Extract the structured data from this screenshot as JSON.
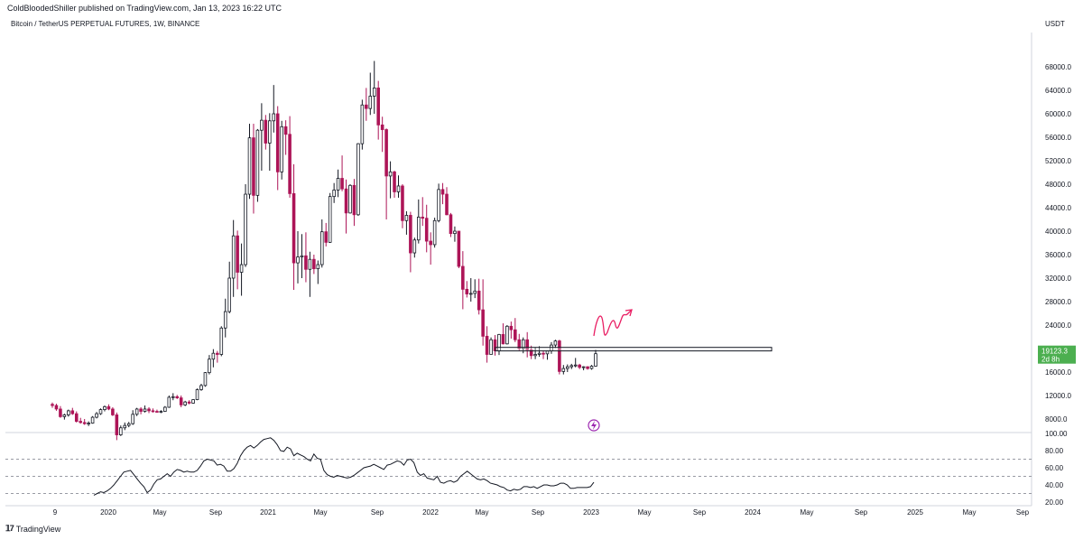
{
  "header": {
    "published": "ColdBloodedShiller published on TradingView.com, Jan 13, 2023 16:22 UTC",
    "symbol": "Bitcoin / TetherUS PERPETUAL FUTURES, 1W, BINANCE",
    "currency": "USDT"
  },
  "footer": {
    "brand": "TradingView",
    "logo": "tradingview-logo-icon"
  },
  "price_badge": {
    "price": "19123.3",
    "countdown": "2d 8h",
    "color": "#4caf50"
  },
  "annotation_icon": "lightning-icon",
  "colors": {
    "up": "#131722",
    "down": "#ad1457",
    "drawing": "#e91e63",
    "rsi": "#131722"
  },
  "chart_data": [
    {
      "type": "candlestick",
      "title": "",
      "ylabel": "USDT",
      "ylim": [
        6000,
        70000
      ],
      "y_ticks": [
        "68000.0",
        "64000.0",
        "60000.0",
        "56000.0",
        "52000.0",
        "48000.0",
        "44000.0",
        "40000.0",
        "36000.0",
        "32000.0",
        "28000.0",
        "24000.0",
        "20000.0",
        "16000.0",
        "12000.0",
        "8000.0"
      ],
      "x_ticks": [
        "9",
        "2020",
        "May",
        "Sep",
        "2021",
        "May",
        "Sep",
        "2022",
        "May",
        "Sep",
        "2023",
        "May",
        "Sep",
        "2024",
        "May",
        "Sep",
        "2025",
        "May",
        "Sep"
      ],
      "series": [
        {
          "values": [
            [
              10500,
              10800,
              9900,
              10300
            ],
            [
              10300,
              10600,
              9400,
              9700
            ],
            [
              9700,
              10200,
              8200,
              8400
            ],
            [
              8400,
              8900,
              7900,
              8700
            ],
            [
              8700,
              9600,
              8400,
              9400
            ],
            [
              9400,
              9900,
              8700,
              8900
            ],
            [
              8900,
              9300,
              7400,
              7600
            ],
            [
              7600,
              8200,
              7200,
              7400
            ],
            [
              7400,
              8000,
              7000,
              7200
            ],
            [
              7200,
              7600,
              6800,
              7300
            ],
            [
              7300,
              8500,
              7200,
              8300
            ],
            [
              8300,
              9200,
              8100,
              8900
            ],
            [
              8900,
              9800,
              8700,
              9600
            ],
            [
              9600,
              10300,
              9300,
              10100
            ],
            [
              10100,
              10500,
              9500,
              9700
            ],
            [
              9700,
              10000,
              8500,
              8700
            ],
            [
              8700,
              9100,
              4400,
              5300
            ],
            [
              5300,
              6900,
              5100,
              6500
            ],
            [
              6500,
              7400,
              6100,
              6900
            ],
            [
              6900,
              7500,
              6600,
              7200
            ],
            [
              7200,
              9500,
              7000,
              8800
            ],
            [
              8800,
              9900,
              8500,
              9700
            ],
            [
              9700,
              10000,
              8800,
              9300
            ],
            [
              9300,
              10300,
              9100,
              9700
            ],
            [
              9700,
              10000,
              9000,
              9400
            ],
            [
              9400,
              9800,
              9100,
              9300
            ],
            [
              9300,
              9600,
              9100,
              9200
            ],
            [
              9200,
              9500,
              9000,
              9300
            ],
            [
              9300,
              10200,
              9200,
              10000
            ],
            [
              10000,
              12000,
              9900,
              11700
            ],
            [
              11700,
              12400,
              11200,
              11800
            ],
            [
              11800,
              12100,
              11400,
              11600
            ],
            [
              11600,
              12000,
              10000,
              10400
            ],
            [
              10400,
              11100,
              10200,
              10900
            ],
            [
              10900,
              11200,
              10500,
              10700
            ],
            [
              10700,
              11400,
              10600,
              11300
            ],
            [
              11300,
              13200,
              11200,
              13000
            ],
            [
              13000,
              14000,
              12800,
              13700
            ],
            [
              13700,
              16000,
              13500,
              15900
            ],
            [
              15900,
              18900,
              15600,
              18200
            ],
            [
              18200,
              19900,
              16800,
              19200
            ],
            [
              19200,
              19600,
              17600,
              19000
            ],
            [
              19000,
              23800,
              18700,
              23500
            ],
            [
              23500,
              28500,
              21900,
              26300
            ],
            [
              26300,
              34800,
              26000,
              32000
            ],
            [
              32000,
              41900,
              28800,
              39200
            ],
            [
              39200,
              40100,
              30100,
              33000
            ],
            [
              33000,
              37900,
              29000,
              34300
            ],
            [
              34300,
              48000,
              33900,
              46300
            ],
            [
              46300,
              58300,
              45500,
              55900
            ],
            [
              55900,
              58300,
              43000,
              46100
            ],
            [
              46100,
              57400,
              45000,
              57200
            ],
            [
              57200,
              61800,
              50300,
              58900
            ],
            [
              58900,
              59800,
              53900,
              55000
            ],
            [
              55000,
              60100,
              50300,
              58800
            ],
            [
              58800,
              64900,
              56800,
              60000
            ],
            [
              60000,
              61300,
              47000,
              50100
            ],
            [
              50100,
              58800,
              48800,
              57800
            ],
            [
              57800,
              58900,
              53000,
              56500
            ],
            [
              56500,
              59600,
              45700,
              46400
            ],
            [
              46400,
              51400,
              30000,
              34600
            ],
            [
              34600,
              40000,
              31100,
              35600
            ],
            [
              35600,
              39500,
              32000,
              35800
            ],
            [
              35800,
              39800,
              31300,
              33500
            ],
            [
              33500,
              36500,
              28800,
              35200
            ],
            [
              35200,
              36000,
              32700,
              33600
            ],
            [
              33600,
              35000,
              31000,
              34300
            ],
            [
              34300,
              42000,
              33800,
              39900
            ],
            [
              39900,
              41400,
              37400,
              38100
            ],
            [
              38100,
              46500,
              38000,
              45900
            ],
            [
              45900,
              48200,
              44800,
              47000
            ],
            [
              47000,
              50500,
              45800,
              49000
            ],
            [
              49000,
              52900,
              46800,
              47200
            ],
            [
              47200,
              48800,
              39600,
              43100
            ],
            [
              43100,
              48000,
              43000,
              47800
            ],
            [
              47800,
              48900,
              40900,
              42800
            ],
            [
              42800,
              55000,
              42600,
              54900
            ],
            [
              54900,
              62400,
              53900,
              61500
            ],
            [
              61500,
              64400,
              58800,
              60900
            ],
            [
              60900,
              67000,
              59800,
              63000
            ],
            [
              63000,
              69000,
              60000,
              64400
            ],
            [
              64400,
              65600,
              55600,
              58100
            ],
            [
              58100,
              59500,
              53500,
              57300
            ],
            [
              57300,
              57500,
              42000,
              49400
            ],
            [
              49400,
              51900,
              45600,
              50100
            ],
            [
              50100,
              50300,
              45700,
              46700
            ],
            [
              46700,
              49500,
              45700,
              47700
            ],
            [
              47700,
              48000,
              40500,
              41800
            ],
            [
              41800,
              43400,
              39400,
              42700
            ],
            [
              42700,
              43300,
              33000,
              36300
            ],
            [
              36300,
              38900,
              35500,
              38500
            ],
            [
              38500,
              45400,
              37900,
              42400
            ],
            [
              42400,
              45800,
              40900,
              42200
            ],
            [
              42200,
              44500,
              36400,
              38300
            ],
            [
              38300,
              39800,
              34300,
              37700
            ],
            [
              37700,
              42300,
              37200,
              41800
            ],
            [
              41800,
              48100,
              41500,
              47100
            ],
            [
              47100,
              48200,
              44600,
              46300
            ],
            [
              46300,
              47500,
              42700,
              42800
            ],
            [
              42800,
              43100,
              39000,
              39600
            ],
            [
              39600,
              40800,
              38200,
              40000
            ],
            [
              40000,
              40000,
              33700,
              34000
            ],
            [
              34000,
              36600,
              26700,
              30100
            ],
            [
              30100,
              31500,
              28700,
              29300
            ],
            [
              29300,
              32000,
              28000,
              29400
            ],
            [
              29400,
              31800,
              28600,
              29800
            ],
            [
              29800,
              31900,
              25800,
              26600
            ],
            [
              26600,
              31800,
              20500,
              22100
            ],
            [
              22100,
              23800,
              17600,
              19000
            ],
            [
              19000,
              21900,
              19000,
              21500
            ],
            [
              21500,
              22300,
              18800,
              19600
            ],
            [
              19600,
              22500,
              18900,
              22400
            ],
            [
              22400,
              24300,
              20700,
              20800
            ],
            [
              20800,
              24000,
              20700,
              23800
            ],
            [
              23800,
              24600,
              21700,
              23200
            ],
            [
              23200,
              25200,
              21100,
              21500
            ],
            [
              21500,
              22500,
              19600,
              20000
            ],
            [
              20000,
              21900,
              19200,
              21500
            ],
            [
              21500,
              22800,
              18500,
              19800
            ],
            [
              19800,
              20500,
              18200,
              18800
            ],
            [
              18800,
              20200,
              18200,
              19000
            ],
            [
              19000,
              20400,
              18600,
              19200
            ],
            [
              19200,
              19700,
              18200,
              19100
            ],
            [
              19100,
              19600,
              18100,
              19600
            ],
            [
              19600,
              21100,
              19100,
              20600
            ],
            [
              20600,
              21500,
              20100,
              21300
            ],
            [
              21300,
              21500,
              15600,
              16100
            ],
            [
              16100,
              17200,
              15600,
              16600
            ],
            [
              16600,
              17300,
              16000,
              16900
            ],
            [
              16900,
              17400,
              16500,
              17100
            ],
            [
              17100,
              18400,
              16800,
              17200
            ],
            [
              17200,
              17400,
              16500,
              16800
            ],
            [
              16800,
              17000,
              16300,
              16900
            ],
            [
              16900,
              17000,
              16400,
              16600
            ],
            [
              16600,
              17200,
              16400,
              17000
            ],
            [
              17000,
              19800,
              16900,
              19123
            ]
          ]
        }
      ]
    },
    {
      "type": "line",
      "title": "",
      "ylim": [
        20,
        100
      ],
      "y_ticks": [
        "100.00",
        "80.00",
        "60.00",
        "40.00",
        "20.00"
      ],
      "levels": [
        70,
        50,
        30
      ],
      "series": [
        {
          "values": [
            28,
            30,
            32,
            31,
            33,
            36,
            40,
            45,
            50,
            55,
            56,
            57,
            52,
            47,
            42,
            38,
            31,
            34,
            41,
            46,
            47,
            50,
            53,
            50,
            55,
            58,
            57,
            55,
            56,
            55,
            55,
            57,
            62,
            68,
            70,
            69,
            68,
            63,
            64,
            62,
            56,
            56,
            59,
            65,
            74,
            80,
            84,
            86,
            83,
            86,
            90,
            93,
            94,
            95,
            92,
            87,
            80,
            79,
            84,
            82,
            74,
            77,
            75,
            73,
            70,
            68,
            76,
            71,
            70,
            57,
            52,
            50,
            49,
            51,
            50,
            49,
            48,
            49,
            51,
            54,
            57,
            60,
            61,
            62,
            64,
            62,
            60,
            58,
            63,
            64,
            66,
            68,
            67,
            63,
            69,
            70,
            66,
            55,
            51,
            53,
            48,
            47,
            46,
            50,
            43,
            42,
            44,
            45,
            43,
            45,
            50,
            53,
            56,
            53,
            50,
            47,
            46,
            47,
            45,
            42,
            41,
            40,
            38,
            37,
            34,
            33,
            35,
            34,
            35,
            38,
            38,
            37,
            38,
            36,
            38,
            40,
            40,
            39,
            39,
            40,
            42,
            42,
            40,
            36,
            36,
            37,
            37,
            37,
            37,
            38,
            43
          ]
        }
      ]
    }
  ]
}
